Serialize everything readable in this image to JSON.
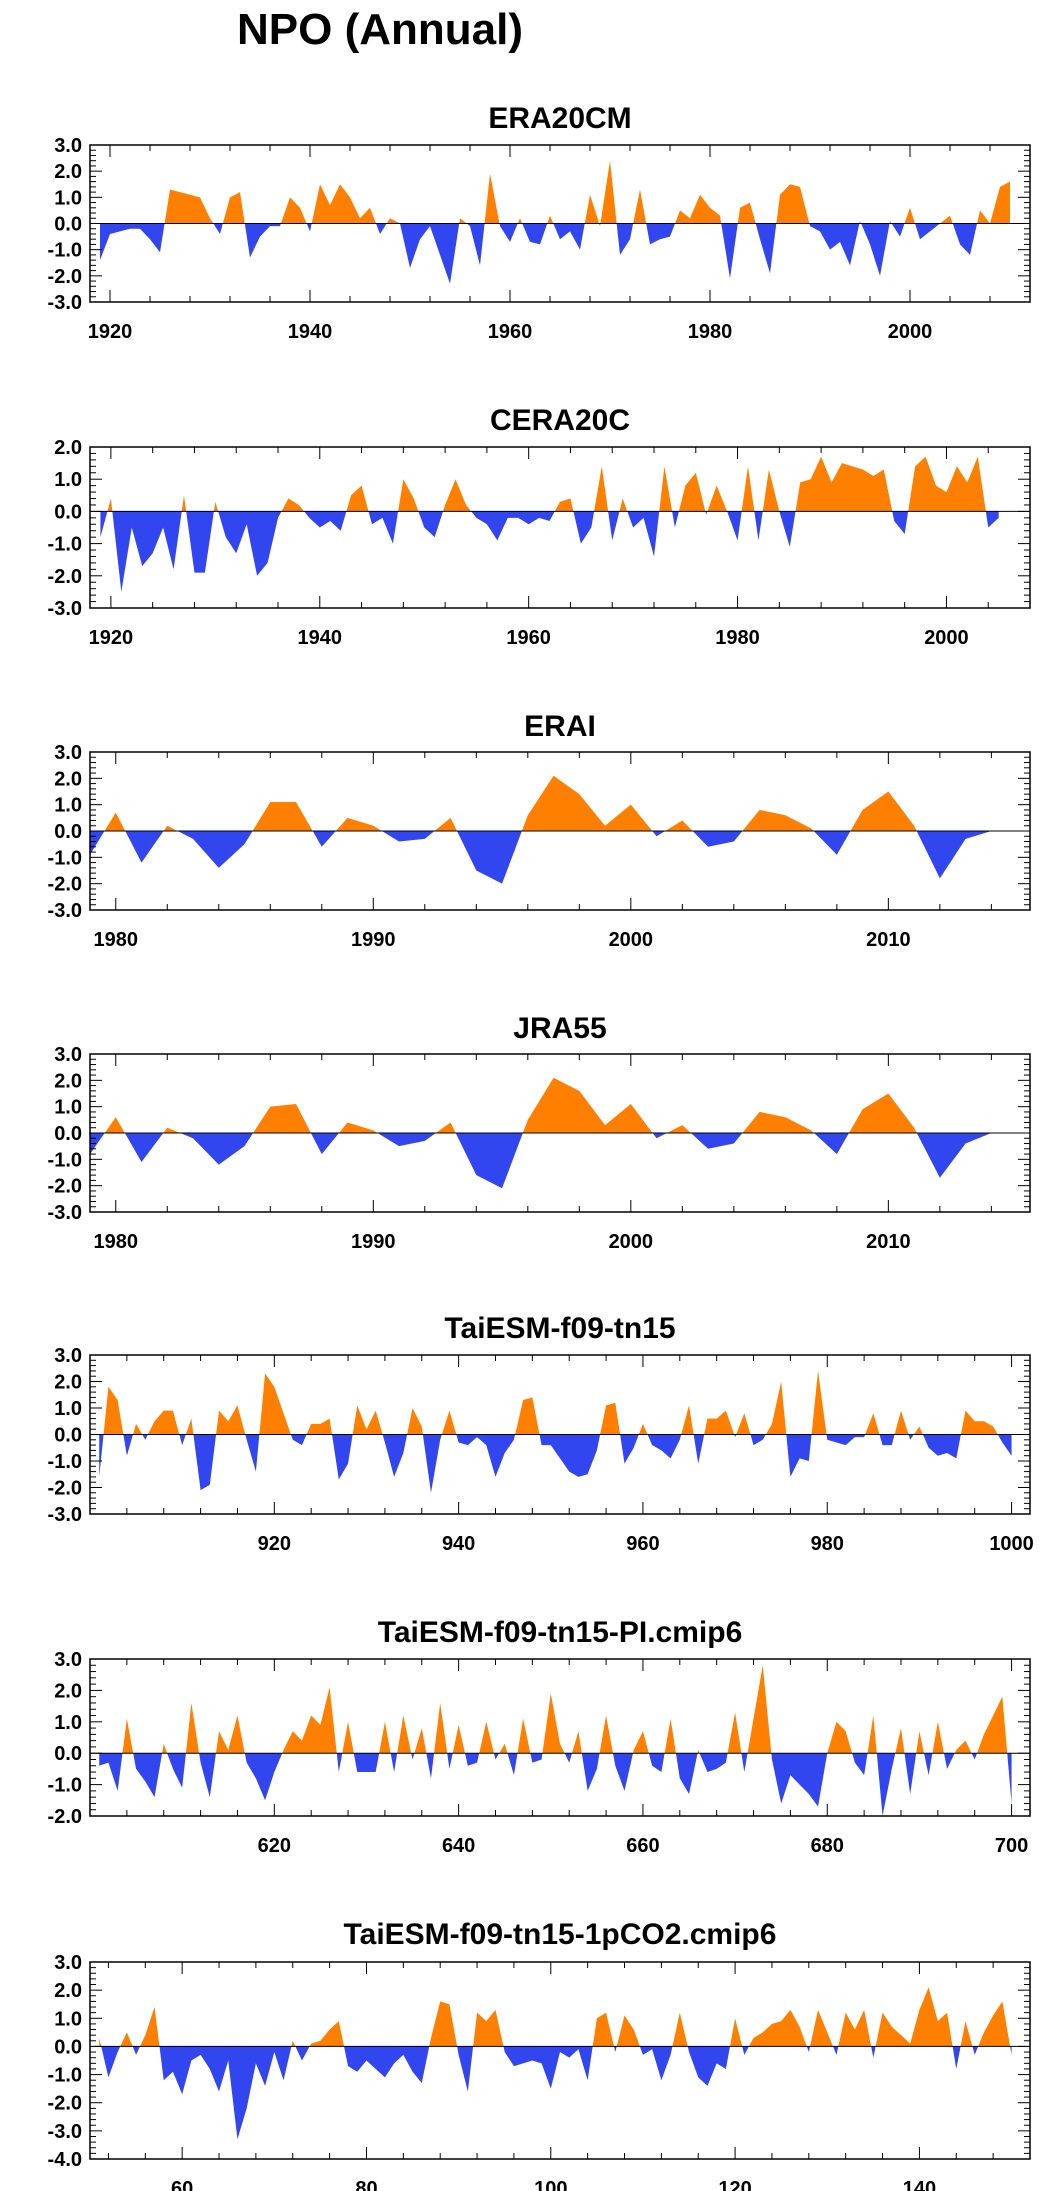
{
  "page": {
    "title": "NPO (Annual)"
  },
  "chart_data": [
    {
      "type": "area",
      "title": "ERA20CM",
      "ylim": [
        -3.0,
        3.0
      ],
      "yticks": [
        -3.0,
        -2.0,
        -1.0,
        0.0,
        1.0,
        2.0,
        3.0
      ],
      "ytick_labels": [
        "-3.0",
        "-2.0",
        "-1.0",
        "0.0",
        "1.0",
        "2.0",
        "3.0"
      ],
      "xlim": [
        1918,
        2012
      ],
      "xticks": [
        1920,
        1940,
        1960,
        1980,
        2000
      ],
      "xtick_labels": [
        "1920",
        "1940",
        "1960",
        "1980",
        "2000"
      ],
      "x": [
        1919,
        1920,
        1921,
        1922,
        1923,
        1924,
        1925,
        1926,
        1927,
        1928,
        1929,
        1930,
        1931,
        1932,
        1933,
        1934,
        1935,
        1936,
        1937,
        1938,
        1939,
        1940,
        1941,
        1942,
        1943,
        1944,
        1945,
        1946,
        1947,
        1948,
        1949,
        1950,
        1951,
        1952,
        1953,
        1954,
        1955,
        1956,
        1957,
        1958,
        1959,
        1960,
        1961,
        1962,
        1963,
        1964,
        1965,
        1966,
        1967,
        1968,
        1969,
        1970,
        1971,
        1972,
        1973,
        1974,
        1975,
        1976,
        1977,
        1978,
        1979,
        1980,
        1981,
        1982,
        1983,
        1984,
        1985,
        1986,
        1987,
        1988,
        1989,
        1990,
        1991,
        1992,
        1993,
        1994,
        1995,
        1996,
        1997,
        1998,
        1999,
        2000,
        2001,
        2002,
        2003,
        2004,
        2005,
        2006,
        2007,
        2008,
        2009,
        2010
      ],
      "values": [
        -1.4,
        -0.4,
        -0.3,
        -0.2,
        -0.2,
        -0.6,
        -1.1,
        1.3,
        1.2,
        1.1,
        1.0,
        0.2,
        -0.4,
        1.0,
        1.2,
        -1.3,
        -0.5,
        -0.1,
        -0.1,
        1.0,
        0.6,
        -0.3,
        1.5,
        0.7,
        1.5,
        1.0,
        0.2,
        0.6,
        -0.4,
        0.2,
        0.0,
        -1.7,
        -0.6,
        -0.1,
        -1.2,
        -2.3,
        0.2,
        -0.1,
        -1.6,
        1.9,
        -0.1,
        -0.7,
        0.2,
        -0.7,
        -0.8,
        0.3,
        -0.6,
        -0.3,
        -1.0,
        1.1,
        -0.1,
        2.4,
        -1.2,
        -0.6,
        1.3,
        -0.8,
        -0.6,
        -0.5,
        0.5,
        0.2,
        1.1,
        0.6,
        0.3,
        -2.1,
        0.6,
        0.8,
        -0.6,
        -1.9,
        1.1,
        1.5,
        1.4,
        -0.1,
        -0.3,
        -1.0,
        -0.7,
        -1.6,
        0.1,
        -0.8,
        -2.0,
        0.1,
        -0.5,
        0.6,
        -0.6,
        -0.3,
        0.0,
        0.3,
        -0.8,
        -1.2,
        0.5,
        0.0,
        1.4,
        1.6
      ]
    },
    {
      "type": "area",
      "title": "CERA20C",
      "ylim": [
        -3.0,
        2.0
      ],
      "yticks": [
        -3.0,
        -2.0,
        -1.0,
        0.0,
        1.0,
        2.0
      ],
      "ytick_labels": [
        "-3.0",
        "-2.0",
        "-1.0",
        "0.0",
        "1.0",
        "2.0"
      ],
      "xlim": [
        1918,
        2008
      ],
      "xticks": [
        1920,
        1940,
        1960,
        1980,
        2000
      ],
      "xtick_labels": [
        "1920",
        "1940",
        "1960",
        "1980",
        "2000"
      ],
      "x": [
        1919,
        1920,
        1921,
        1922,
        1923,
        1924,
        1925,
        1926,
        1927,
        1928,
        1929,
        1930,
        1931,
        1932,
        1933,
        1934,
        1935,
        1936,
        1937,
        1938,
        1939,
        1940,
        1941,
        1942,
        1943,
        1944,
        1945,
        1946,
        1947,
        1948,
        1949,
        1950,
        1951,
        1952,
        1953,
        1954,
        1955,
        1956,
        1957,
        1958,
        1959,
        1960,
        1961,
        1962,
        1963,
        1964,
        1965,
        1966,
        1967,
        1968,
        1969,
        1970,
        1971,
        1972,
        1973,
        1974,
        1975,
        1976,
        1977,
        1978,
        1979,
        1980,
        1981,
        1982,
        1983,
        1984,
        1985,
        1986,
        1987,
        1988,
        1989,
        1990,
        1991,
        1992,
        1993,
        1994,
        1995,
        1996,
        1997,
        1998,
        1999,
        2000,
        2001,
        2002,
        2003,
        2004,
        2005
      ],
      "values": [
        -0.8,
        0.4,
        -2.5,
        -0.5,
        -1.7,
        -1.3,
        -0.5,
        -1.8,
        0.5,
        -1.9,
        -1.9,
        0.3,
        -0.8,
        -1.3,
        -0.4,
        -2.0,
        -1.6,
        -0.2,
        0.4,
        0.2,
        -0.2,
        -0.5,
        -0.3,
        -0.6,
        0.5,
        0.8,
        -0.4,
        -0.2,
        -1.0,
        1.0,
        0.4,
        -0.5,
        -0.8,
        0.2,
        1.0,
        0.2,
        -0.2,
        -0.4,
        -0.9,
        -0.2,
        -0.2,
        -0.4,
        -0.2,
        -0.3,
        0.3,
        0.4,
        -1.0,
        -0.5,
        1.4,
        -0.9,
        0.4,
        -0.5,
        -0.2,
        -1.4,
        1.4,
        -0.5,
        0.8,
        1.2,
        -0.1,
        0.8,
        0.0,
        -0.9,
        1.4,
        -0.9,
        1.3,
        0.0,
        -1.1,
        0.9,
        1.0,
        1.7,
        0.9,
        1.5,
        1.4,
        1.3,
        1.1,
        1.3,
        -0.3,
        -0.7,
        1.4,
        1.7,
        0.8,
        0.6,
        1.4,
        0.9,
        1.7,
        -0.5,
        -0.2
      ]
    },
    {
      "type": "area",
      "title": "ERAI",
      "ylim": [
        -3.0,
        3.0
      ],
      "yticks": [
        -3.0,
        -2.0,
        -1.0,
        0.0,
        1.0,
        2.0,
        3.0
      ],
      "ytick_labels": [
        "-3.0",
        "-2.0",
        "-1.0",
        "0.0",
        "1.0",
        "2.0",
        "3.0"
      ],
      "xlim": [
        1979,
        2015.5
      ],
      "xticks": [
        1980,
        1990,
        2000,
        2010
      ],
      "xtick_labels": [
        "1980",
        "1990",
        "2000",
        "2010"
      ],
      "x": [
        1979,
        1980,
        1981,
        1982,
        1983,
        1984,
        1985,
        1986,
        1987,
        1988,
        1989,
        1990,
        1991,
        1992,
        1993,
        1994,
        1995,
        1996,
        1997,
        1998,
        1999,
        2000,
        2001,
        2002,
        2003,
        2004,
        2005,
        2006,
        2007,
        2008,
        2009,
        2010,
        2011,
        2012,
        2013,
        2014
      ],
      "values": [
        -0.9,
        0.7,
        -1.2,
        0.2,
        -0.3,
        -1.4,
        -0.5,
        1.1,
        1.1,
        -0.6,
        0.5,
        0.2,
        -0.4,
        -0.3,
        0.5,
        -1.5,
        -2.0,
        0.6,
        2.1,
        1.4,
        0.2,
        1.0,
        -0.2,
        0.4,
        -0.6,
        -0.4,
        0.8,
        0.6,
        0.1,
        -0.9,
        0.8,
        1.5,
        0.2,
        -1.8,
        -0.3,
        0.0
      ]
    },
    {
      "type": "area",
      "title": "JRA55",
      "ylim": [
        -3.0,
        3.0
      ],
      "yticks": [
        -3.0,
        -2.0,
        -1.0,
        0.0,
        1.0,
        2.0,
        3.0
      ],
      "ytick_labels": [
        "-3.0",
        "-2.0",
        "-1.0",
        "0.0",
        "1.0",
        "2.0",
        "3.0"
      ],
      "xlim": [
        1979,
        2015.5
      ],
      "xticks": [
        1980,
        1990,
        2000,
        2010
      ],
      "xtick_labels": [
        "1980",
        "1990",
        "2000",
        "2010"
      ],
      "x": [
        1979,
        1980,
        1981,
        1982,
        1983,
        1984,
        1985,
        1986,
        1987,
        1988,
        1989,
        1990,
        1991,
        1992,
        1993,
        1994,
        1995,
        1996,
        1997,
        1998,
        1999,
        2000,
        2001,
        2002,
        2003,
        2004,
        2005,
        2006,
        2007,
        2008,
        2009,
        2010,
        2011,
        2012,
        2013,
        2014
      ],
      "values": [
        -0.8,
        0.6,
        -1.1,
        0.2,
        -0.2,
        -1.2,
        -0.5,
        1.0,
        1.1,
        -0.8,
        0.4,
        0.1,
        -0.5,
        -0.3,
        0.4,
        -1.6,
        -2.1,
        0.5,
        2.1,
        1.6,
        0.3,
        1.1,
        -0.2,
        0.3,
        -0.6,
        -0.4,
        0.8,
        0.6,
        0.1,
        -0.8,
        0.9,
        1.5,
        0.2,
        -1.7,
        -0.4,
        0.0
      ]
    },
    {
      "type": "area",
      "title": "TaiESM-f09-tn15",
      "ylim": [
        -3.0,
        3.0
      ],
      "yticks": [
        -3.0,
        -2.0,
        -1.0,
        0.0,
        1.0,
        2.0,
        3.0
      ],
      "ytick_labels": [
        "-3.0",
        "-2.0",
        "-1.0",
        "0.0",
        "1.0",
        "2.0",
        "3.0"
      ],
      "xlim": [
        900,
        1002
      ],
      "xticks": [
        920,
        940,
        960,
        980,
        1000
      ],
      "xtick_labels": [
        "920",
        "940",
        "960",
        "980",
        "1000"
      ],
      "x": [
        901,
        902,
        903,
        904,
        905,
        906,
        907,
        908,
        909,
        910,
        911,
        912,
        913,
        914,
        915,
        916,
        917,
        918,
        919,
        920,
        921,
        922,
        923,
        924,
        925,
        926,
        927,
        928,
        929,
        930,
        931,
        932,
        933,
        934,
        935,
        936,
        937,
        938,
        939,
        940,
        941,
        942,
        943,
        944,
        945,
        946,
        947,
        948,
        949,
        950,
        951,
        952,
        953,
        954,
        955,
        956,
        957,
        958,
        959,
        960,
        961,
        962,
        963,
        964,
        965,
        966,
        967,
        968,
        969,
        970,
        971,
        972,
        973,
        974,
        975,
        976,
        977,
        978,
        979,
        980,
        981,
        982,
        983,
        984,
        985,
        986,
        987,
        988,
        989,
        990,
        991,
        992,
        993,
        994,
        995,
        996,
        997,
        998,
        999,
        1000
      ],
      "values": [
        -1.6,
        1.8,
        1.3,
        -0.8,
        0.4,
        -0.2,
        0.5,
        0.9,
        0.9,
        -0.4,
        0.6,
        -2.1,
        -1.9,
        0.9,
        0.5,
        1.1,
        -0.2,
        -1.4,
        2.3,
        1.8,
        0.8,
        -0.2,
        -0.4,
        0.4,
        0.4,
        0.6,
        -1.7,
        -1.1,
        1.1,
        0.2,
        0.9,
        -0.3,
        -1.6,
        -0.7,
        1.0,
        0.3,
        -2.2,
        -0.2,
        0.9,
        -0.3,
        -0.4,
        -0.1,
        -0.4,
        -1.6,
        -0.7,
        -0.2,
        1.3,
        1.4,
        -0.4,
        -0.4,
        -0.9,
        -1.4,
        -1.6,
        -1.5,
        -0.6,
        1.1,
        1.2,
        -1.1,
        -0.5,
        0.4,
        -0.4,
        -0.6,
        -0.9,
        -0.2,
        1.1,
        -1.1,
        0.6,
        0.6,
        0.9,
        -0.1,
        0.8,
        -0.4,
        -0.2,
        0.4,
        2.0,
        -1.6,
        -0.9,
        -1.0,
        2.4,
        -0.2,
        -0.3,
        -0.4,
        -0.1,
        -0.1,
        0.8,
        -0.4,
        -0.4,
        0.9,
        -0.2,
        0.3,
        -0.5,
        -0.8,
        -0.7,
        -0.9,
        0.9,
        0.5,
        0.5,
        0.3,
        -0.3,
        -0.8
      ]
    },
    {
      "type": "area",
      "title": "TaiESM-f09-tn15-PI.cmip6",
      "ylim": [
        -2.0,
        3.0
      ],
      "yticks": [
        -2.0,
        -1.0,
        0.0,
        1.0,
        2.0,
        3.0
      ],
      "ytick_labels": [
        "-2.0",
        "-1.0",
        "0.0",
        "1.0",
        "2.0",
        "3.0"
      ],
      "xlim": [
        600,
        702
      ],
      "xticks": [
        620,
        640,
        660,
        680,
        700
      ],
      "xtick_labels": [
        "620",
        "640",
        "660",
        "680",
        "700"
      ],
      "x": [
        601,
        602,
        603,
        604,
        605,
        606,
        607,
        608,
        609,
        610,
        611,
        612,
        613,
        614,
        615,
        616,
        617,
        618,
        619,
        620,
        621,
        622,
        623,
        624,
        625,
        626,
        627,
        628,
        629,
        630,
        631,
        632,
        633,
        634,
        635,
        636,
        637,
        638,
        639,
        640,
        641,
        642,
        643,
        644,
        645,
        646,
        647,
        648,
        649,
        650,
        651,
        652,
        653,
        654,
        655,
        656,
        657,
        658,
        659,
        660,
        661,
        662,
        663,
        664,
        665,
        666,
        667,
        668,
        669,
        670,
        671,
        672,
        673,
        674,
        675,
        676,
        677,
        678,
        679,
        680,
        681,
        682,
        683,
        684,
        685,
        686,
        687,
        688,
        689,
        690,
        691,
        692,
        693,
        694,
        695,
        696,
        697,
        698,
        699,
        700
      ],
      "values": [
        -0.4,
        -0.3,
        -1.2,
        1.1,
        -0.5,
        -0.9,
        -1.4,
        0.3,
        -0.5,
        -1.1,
        1.6,
        -0.3,
        -1.4,
        0.7,
        0.1,
        1.2,
        -0.3,
        -0.8,
        -1.5,
        -0.6,
        0.1,
        0.7,
        0.4,
        1.2,
        0.9,
        2.1,
        -0.6,
        1.0,
        -0.6,
        -0.6,
        -0.6,
        1.0,
        -0.6,
        1.2,
        -0.2,
        0.8,
        -0.8,
        1.6,
        -0.5,
        0.9,
        -0.4,
        -0.3,
        1.0,
        -0.2,
        0.3,
        -0.7,
        1.1,
        -0.3,
        -0.2,
        1.9,
        0.3,
        -0.3,
        0.7,
        -1.2,
        -0.5,
        1.2,
        -0.4,
        -1.2,
        0.1,
        0.7,
        -0.4,
        -0.6,
        1.1,
        -0.8,
        -1.3,
        0.1,
        -0.6,
        -0.5,
        -0.3,
        1.3,
        -0.6,
        1.1,
        2.8,
        -0.2,
        -1.6,
        -0.7,
        -1.0,
        -1.3,
        -1.7,
        0.0,
        1.0,
        0.7,
        -0.3,
        -0.7,
        1.2,
        -2.0,
        -0.5,
        0.8,
        -1.3,
        0.7,
        -0.7,
        1.0,
        -0.5,
        0.1,
        0.4,
        -0.2,
        0.6,
        1.2,
        1.8,
        -1.6
      ]
    },
    {
      "type": "area",
      "title": "TaiESM-f09-tn15-1pCO2.cmip6",
      "ylim": [
        -4.0,
        3.0
      ],
      "yticks": [
        -4.0,
        -3.0,
        -2.0,
        -1.0,
        0.0,
        1.0,
        2.0,
        3.0
      ],
      "ytick_labels": [
        "-4.0",
        "-3.0",
        "-2.0",
        "-1.0",
        "0.0",
        "1.0",
        "2.0",
        "3.0"
      ],
      "xlim": [
        50,
        152
      ],
      "xticks": [
        60,
        80,
        100,
        120,
        140
      ],
      "xtick_labels": [
        "60",
        "80",
        "100",
        "120",
        "140"
      ],
      "x": [
        51,
        52,
        53,
        54,
        55,
        56,
        57,
        58,
        59,
        60,
        61,
        62,
        63,
        64,
        65,
        66,
        67,
        68,
        69,
        70,
        71,
        72,
        73,
        74,
        75,
        76,
        77,
        78,
        79,
        80,
        81,
        82,
        83,
        84,
        85,
        86,
        87,
        88,
        89,
        90,
        91,
        92,
        93,
        94,
        95,
        96,
        97,
        98,
        99,
        100,
        101,
        102,
        103,
        104,
        105,
        106,
        107,
        108,
        109,
        110,
        111,
        112,
        113,
        114,
        115,
        116,
        117,
        118,
        119,
        120,
        121,
        122,
        123,
        124,
        125,
        126,
        127,
        128,
        129,
        130,
        131,
        132,
        133,
        134,
        135,
        136,
        137,
        138,
        139,
        140,
        141,
        142,
        143,
        144,
        145,
        146,
        147,
        148,
        149,
        150
      ],
      "values": [
        0.3,
        -1.1,
        -0.2,
        0.5,
        -0.3,
        0.4,
        1.4,
        -1.2,
        -0.9,
        -1.7,
        -0.5,
        -0.3,
        -0.8,
        -1.6,
        -0.5,
        -3.3,
        -2.2,
        -0.6,
        -1.4,
        -0.2,
        -1.2,
        0.2,
        -0.5,
        0.1,
        0.2,
        0.6,
        0.9,
        -0.7,
        -0.9,
        -0.5,
        -0.8,
        -1.1,
        -0.6,
        -0.3,
        -0.9,
        -1.3,
        0.3,
        1.6,
        1.5,
        -0.3,
        -1.6,
        1.2,
        0.9,
        1.3,
        -0.2,
        -0.7,
        -0.6,
        -0.5,
        -0.6,
        -1.5,
        -0.2,
        -0.4,
        -0.1,
        -1.2,
        1.0,
        1.2,
        -0.2,
        1.1,
        0.6,
        -0.3,
        -0.1,
        -1.2,
        -0.3,
        1.2,
        -0.2,
        -1.1,
        -1.4,
        -0.6,
        -0.8,
        1.0,
        -0.3,
        0.3,
        0.5,
        0.8,
        0.9,
        1.3,
        0.7,
        -0.2,
        1.3,
        0.5,
        -0.3,
        1.2,
        0.6,
        1.3,
        -0.4,
        1.2,
        0.7,
        0.4,
        0.1,
        1.3,
        2.1,
        0.9,
        1.2,
        -0.8,
        0.9,
        -0.3,
        0.5,
        1.1,
        1.6,
        -0.3
      ]
    }
  ]
}
